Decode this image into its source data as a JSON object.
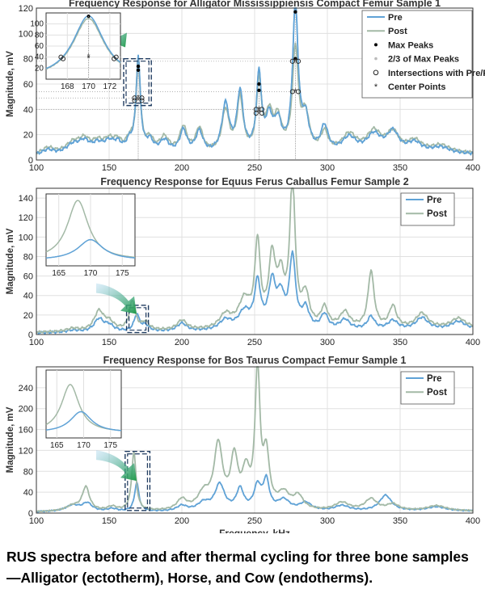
{
  "caption": "RUS spectra before and after thermal cycling for three bone samples—Alligator (ectotherm), Horse, and Cow (endotherms).",
  "colors": {
    "pre": "#5fa2d6",
    "post": "#a3b9a6",
    "grid": "#e0e0e0",
    "axis": "#333333",
    "arrow_start": "#8ec8e8",
    "arrow_end": "#1f9a48",
    "box": "#1e3a5f"
  },
  "chart_data": [
    {
      "type": "line",
      "title": "Frequency Response for Alligator Mississippiensis Compact Femur Sample 1",
      "xlabel": "",
      "ylabel": "Magnitude, mV",
      "xlim": [
        100,
        400
      ],
      "ylim": [
        0,
        120
      ],
      "xticks": [
        100,
        150,
        200,
        250,
        300,
        350,
        400
      ],
      "yticks": [
        0,
        20,
        40,
        60,
        80,
        100,
        120
      ],
      "legend": [
        "Pre",
        "Post",
        "Max Peaks",
        "2/3 of Max Peaks",
        "Intersections with Pre/Post",
        "Center Points"
      ],
      "legend_position": "top-right",
      "series": [
        {
          "name": "Pre",
          "peaks": [
            [
              108,
              4,
              5
            ],
            [
              125,
              7,
              6
            ],
            [
              133,
              9,
              5
            ],
            [
              142,
              6,
              4
            ],
            [
              150,
              9,
              5
            ],
            [
              156,
              6,
              3
            ],
            [
              164,
              8,
              3
            ],
            [
              170,
              74,
              1.8
            ],
            [
              178,
              9,
              3
            ],
            [
              188,
              10,
              4
            ],
            [
              201,
              18,
              3
            ],
            [
              212,
              17,
              3
            ],
            [
              230,
              38,
              3
            ],
            [
              240,
              47,
              2.5
            ],
            [
              253,
              60,
              2
            ],
            [
              260,
              25,
              3
            ],
            [
              266,
              22,
              3
            ],
            [
              278,
              117,
              2.2
            ],
            [
              285,
              25,
              3
            ],
            [
              298,
              20,
              3
            ],
            [
              315,
              12,
              6
            ],
            [
              332,
              14,
              6
            ],
            [
              345,
              16,
              5
            ],
            [
              360,
              8,
              6
            ],
            [
              378,
              5,
              8
            ]
          ],
          "base": 3,
          "base_slope": 0.004
        },
        {
          "name": "Post",
          "peaks": [
            [
              108,
              5,
              5
            ],
            [
              125,
              8,
              6
            ],
            [
              133,
              10,
              5
            ],
            [
              142,
              7,
              4
            ],
            [
              150,
              10,
              5
            ],
            [
              156,
              7,
              3
            ],
            [
              164,
              9,
              3
            ],
            [
              170,
              71,
              1.8
            ],
            [
              178,
              10,
              3
            ],
            [
              188,
              12,
              4
            ],
            [
              201,
              20,
              3
            ],
            [
              212,
              19,
              3
            ],
            [
              230,
              33,
              3
            ],
            [
              240,
              42,
              2.5
            ],
            [
              253,
              55,
              2
            ],
            [
              260,
              28,
              3
            ],
            [
              266,
              24,
              3
            ],
            [
              278,
              80,
              2.4
            ],
            [
              285,
              28,
              3
            ],
            [
              298,
              15,
              3
            ],
            [
              315,
              14,
              6
            ],
            [
              332,
              16,
              6
            ],
            [
              345,
              15,
              5
            ],
            [
              360,
              9,
              6
            ],
            [
              378,
              6,
              8
            ]
          ],
          "base": 3.5,
          "base_slope": 0.004
        }
      ],
      "markers": {
        "max_peaks": [
          [
            170,
            74
          ],
          [
            253,
            60
          ],
          [
            278,
            117
          ],
          [
            170,
            71
          ],
          [
            253,
            55
          ],
          [
            278,
            80
          ]
        ],
        "two_thirds": [
          [
            170,
            49
          ],
          [
            253,
            40
          ],
          [
            278,
            78
          ],
          [
            278,
            54
          ]
        ],
        "intersections": [
          [
            167.5,
            49
          ],
          [
            172.5,
            49
          ],
          [
            251,
            40
          ],
          [
            255,
            40
          ],
          [
            276,
            78
          ],
          [
            280,
            78
          ],
          [
            276,
            54
          ],
          [
            280,
            54
          ],
          [
            167.5,
            47
          ],
          [
            172.5,
            47
          ],
          [
            251,
            37
          ],
          [
            255,
            37
          ]
        ],
        "centers": [
          [
            170,
            49
          ],
          [
            170,
            47
          ],
          [
            253,
            40
          ],
          [
            253,
            37
          ],
          [
            278,
            78
          ],
          [
            278,
            54
          ]
        ]
      },
      "inset": {
        "xlim": [
          166,
          173
        ],
        "ylim": [
          0,
          120
        ],
        "xticks": [
          168,
          170,
          172
        ],
        "yticks": [
          20,
          40,
          60,
          80,
          100
        ]
      }
    },
    {
      "type": "line",
      "title": "Frequency Response for Equus Ferus Caballus Femur Sample 2",
      "xlabel": "",
      "ylabel": "Magnitude, mV",
      "xlim": [
        100,
        400
      ],
      "ylim": [
        0,
        150
      ],
      "xticks": [
        100,
        150,
        200,
        250,
        300,
        350,
        400
      ],
      "yticks": [
        0,
        20,
        40,
        60,
        80,
        100,
        120,
        140
      ],
      "legend": [
        "Pre",
        "Post"
      ],
      "legend_position": "top-right",
      "series": [
        {
          "name": "Pre",
          "peaks": [
            [
              125,
              2,
              5
            ],
            [
              143,
              13,
              4
            ],
            [
              150,
              6,
              4
            ],
            [
              169,
              17,
              2.2
            ],
            [
              175,
              6,
              3
            ],
            [
              200,
              8,
              4
            ],
            [
              230,
              10,
              5
            ],
            [
              243,
              18,
              5
            ],
            [
              252,
              46,
              2.5
            ],
            [
              262,
              46,
              3
            ],
            [
              268,
              30,
              3
            ],
            [
              276,
              73,
              2.5
            ],
            [
              285,
              20,
              3
            ],
            [
              298,
              15,
              3
            ],
            [
              312,
              10,
              4
            ],
            [
              330,
              13,
              3
            ],
            [
              345,
              9,
              4
            ],
            [
              365,
              12,
              5
            ],
            [
              390,
              8,
              6
            ]
          ],
          "base": 1.5,
          "base_slope": 0.012
        },
        {
          "name": "Post",
          "peaks": [
            [
              125,
              3,
              5
            ],
            [
              143,
              20,
              4
            ],
            [
              150,
              8,
              4
            ],
            [
              166,
              30,
              2.5
            ],
            [
              175,
              8,
              3
            ],
            [
              200,
              10,
              4
            ],
            [
              230,
              14,
              5
            ],
            [
              243,
              28,
              5
            ],
            [
              252,
              84,
              2.2
            ],
            [
              262,
              68,
              2.8
            ],
            [
              268,
              45,
              3
            ],
            [
              276,
              150,
              2.2
            ],
            [
              285,
              32,
              3
            ],
            [
              298,
              20,
              3
            ],
            [
              312,
              16,
              4
            ],
            [
              330,
              58,
              2.5
            ],
            [
              345,
              22,
              3
            ],
            [
              365,
              15,
              5
            ],
            [
              390,
              10,
              6
            ]
          ],
          "base": 2,
          "base_slope": 0.014
        }
      ],
      "inset": {
        "xlim": [
          163,
          177
        ],
        "ylim": [
          90,
          145
        ],
        "xticks": [
          165,
          170,
          175
        ],
        "yticks": []
      }
    },
    {
      "type": "line",
      "title": "Frequency Response for Bos Taurus Compact Femur Sample 1",
      "xlabel": "Frequency, kHz",
      "ylabel": "Magnitude, mV",
      "xlim": [
        100,
        400
      ],
      "ylim": [
        0,
        280
      ],
      "xticks": [
        100,
        150,
        200,
        250,
        300,
        350,
        400
      ],
      "yticks": [
        0,
        40,
        80,
        120,
        160,
        200,
        240
      ],
      "legend": [
        "Pre",
        "Post"
      ],
      "legend_position": "top-right",
      "series": [
        {
          "name": "Pre",
          "peaks": [
            [
              125,
              12,
              6
            ],
            [
              135,
              15,
              4
            ],
            [
              152,
              5,
              4
            ],
            [
              169,
              55,
              1.8
            ],
            [
              200,
              10,
              4
            ],
            [
              215,
              15,
              5
            ],
            [
              226,
              50,
              4
            ],
            [
              240,
              40,
              3
            ],
            [
              252,
              45,
              3
            ],
            [
              258,
              55,
              2.5
            ],
            [
              270,
              20,
              5
            ],
            [
              285,
              15,
              5
            ],
            [
              310,
              10,
              6
            ],
            [
              340,
              30,
              5
            ],
            [
              375,
              8,
              8
            ]
          ],
          "base": 2,
          "base_slope": 0.005
        },
        {
          "name": "Post",
          "peaks": [
            [
              125,
              10,
              6
            ],
            [
              134,
              45,
              3
            ],
            [
              152,
              8,
              4
            ],
            [
              167,
              112,
              1.8
            ],
            [
              200,
              20,
              4
            ],
            [
              215,
              30,
              5
            ],
            [
              225,
              122,
              3.5
            ],
            [
              236,
              95,
              3
            ],
            [
              244,
              65,
              3
            ],
            [
              252,
              265,
              2
            ],
            [
              258,
              100,
              2.5
            ],
            [
              270,
              30,
              5
            ],
            [
              280,
              25,
              4
            ],
            [
              310,
              15,
              6
            ],
            [
              330,
              22,
              5
            ],
            [
              345,
              12,
              5
            ],
            [
              375,
              10,
              8
            ]
          ],
          "base": 2,
          "base_slope": 0.005
        }
      ],
      "inset": {
        "xlim": [
          163,
          177
        ],
        "ylim": [
          150,
          300
        ],
        "xticks": [
          165,
          170,
          175
        ],
        "yticks": []
      }
    }
  ]
}
